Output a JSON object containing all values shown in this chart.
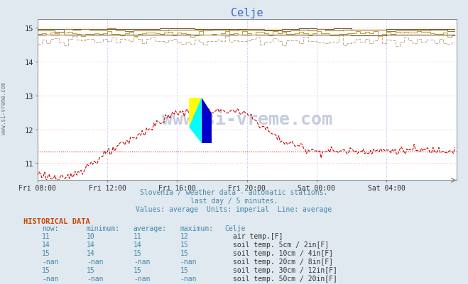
{
  "title": "Celje",
  "title_color": "#4466cc",
  "bg_color": "#e0e8f0",
  "plot_bg_color": "#ffffff",
  "grid_color_h": "#ffaaaa",
  "grid_color_v": "#aaaaff",
  "xlim_start": 0,
  "xlim_end": 288,
  "ylim_min": 10.5,
  "ylim_max": 15.25,
  "yticks": [
    11,
    12,
    13,
    14,
    15
  ],
  "xtick_labels": [
    "Fri 08:00",
    "Fri 12:00",
    "Fri 16:00",
    "Fri 20:00",
    "Sat 00:00",
    "Sat 04:00"
  ],
  "xtick_positions": [
    0,
    48,
    96,
    144,
    192,
    240
  ],
  "subtitle1": "Slovenia / weather data - automatic stations.",
  "subtitle2": "last day / 5 minutes.",
  "subtitle3": "Values: average  Units: imperial  Line: average",
  "subtitle_color": "#4488aa",
  "watermark": "www.si-vreme.com",
  "watermark_color": "#1a3a7a",
  "watermark_alpha": 0.25,
  "air_temp_color": "#cc0000",
  "air_temp_avg": 11.35,
  "soil5_color": "#c8b098",
  "soil10_color": "#c8a040",
  "soil20_color": "#a07830",
  "soil30_color": "#606030",
  "soil50_color": "#604828",
  "hist_header_color": "#cc4400",
  "hist_col_color": "#4488aa",
  "hist_label_color": "#333333",
  "table_rows": [
    {
      "now": "11",
      "min": "10",
      "avg": "11",
      "max": "12",
      "swatch": "#cc0000",
      "label": "air temp.[F]"
    },
    {
      "now": "14",
      "min": "14",
      "avg": "14",
      "max": "15",
      "swatch": "#c8b098",
      "label": "soil temp. 5cm / 2in[F]"
    },
    {
      "now": "15",
      "min": "14",
      "avg": "15",
      "max": "15",
      "swatch": "#c8a040",
      "label": "soil temp. 10cm / 4in[F]"
    },
    {
      "now": "-nan",
      "min": "-nan",
      "avg": "-nan",
      "max": "-nan",
      "swatch": "#a07830",
      "label": "soil temp. 20cm / 8in[F]"
    },
    {
      "now": "15",
      "min": "15",
      "avg": "15",
      "max": "15",
      "swatch": "#606030",
      "label": "soil temp. 30cm / 12in[F]"
    },
    {
      "now": "-nan",
      "min": "-nan",
      "avg": "-nan",
      "max": "-nan",
      "swatch": "#604828",
      "label": "soil temp. 50cm / 20in[F]"
    }
  ],
  "logo_yellow": "#ffff00",
  "logo_cyan": "#00ffff",
  "logo_blue": "#0000cc"
}
